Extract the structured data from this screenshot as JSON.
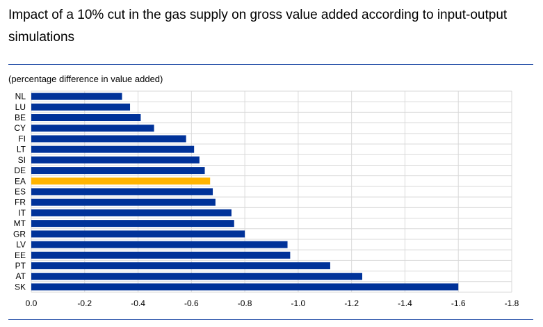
{
  "header": {
    "title": "Impact of a 10% cut in the gas supply on gross value added according to input-output simulations",
    "subtitle": "(percentage difference in value added)"
  },
  "colors": {
    "bar": "#003299",
    "highlight": "#FFB400",
    "grid": "#d9d9d9",
    "rule": "#003299"
  },
  "chart_data": {
    "type": "bar",
    "orientation": "horizontal",
    "title": "Impact of a 10% cut in the gas supply on gross value added according to input-output simulations",
    "subtitle": "(percentage difference in value added)",
    "xlabel": "",
    "ylabel": "",
    "categories": [
      "NL",
      "LU",
      "BE",
      "CY",
      "FI",
      "LT",
      "SI",
      "DE",
      "EA",
      "ES",
      "FR",
      "IT",
      "MT",
      "GR",
      "LV",
      "EE",
      "PT",
      "AT",
      "SK"
    ],
    "values": [
      -0.34,
      -0.37,
      -0.41,
      -0.46,
      -0.58,
      -0.61,
      -0.63,
      -0.65,
      -0.67,
      -0.68,
      -0.69,
      -0.75,
      -0.76,
      -0.8,
      -0.96,
      -0.97,
      -1.12,
      -1.24,
      -1.6
    ],
    "highlight": "EA",
    "xlim": [
      0,
      -1.8
    ],
    "xticks": [
      "0.0",
      "-0.2",
      "-0.4",
      "-0.6",
      "-0.8",
      "-1.0",
      "-1.2",
      "-1.4",
      "-1.6",
      "-1.8"
    ],
    "grid": true,
    "legend": "none"
  }
}
